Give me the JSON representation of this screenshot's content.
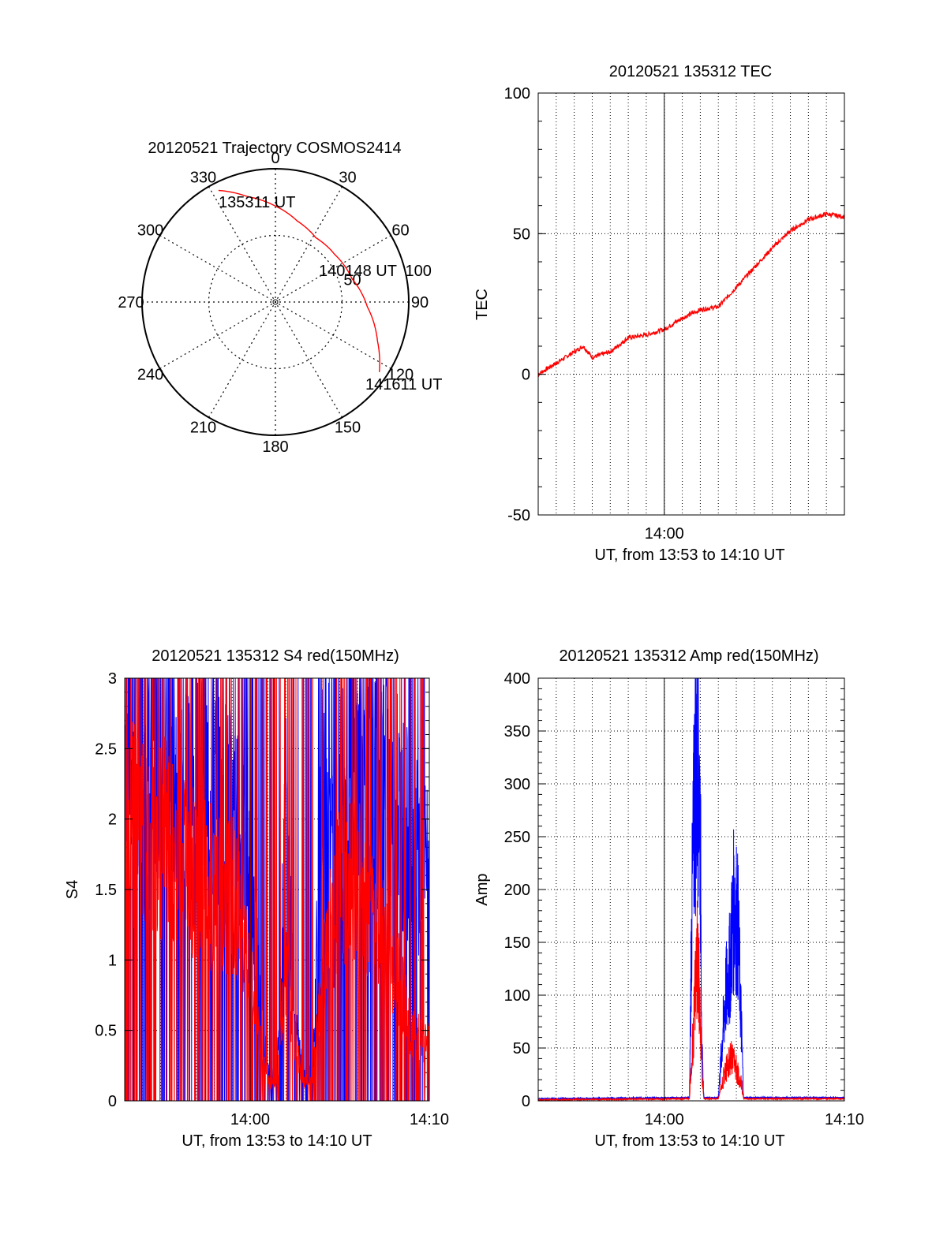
{
  "colors": {
    "red_channel": "#ff0000",
    "blue_channel": "#0000ff",
    "axis": "#000000",
    "grid": "#000000"
  },
  "chart_data": [
    {
      "type": "polar",
      "title": "20120521 Trajectory COSMOS2414",
      "angle_labels": [
        "0",
        "30",
        "60",
        "90",
        "120",
        "150",
        "180",
        "210",
        "240",
        "270",
        "300",
        "330"
      ],
      "radius_labels": [
        "50",
        "100"
      ],
      "trajectory": {
        "color": "#ff0000",
        "points": [
          {
            "az": 333,
            "r": 94
          },
          {
            "az": 345,
            "r": 82
          },
          {
            "az": 0,
            "r": 72
          },
          {
            "az": 15,
            "r": 63
          },
          {
            "az": 32,
            "r": 57
          },
          {
            "az": 51,
            "r": 57
          },
          {
            "az": 73,
            "r": 60
          },
          {
            "az": 93,
            "r": 69
          },
          {
            "az": 111,
            "r": 82
          },
          {
            "az": 124,
            "r": 94
          }
        ]
      },
      "annotations": [
        "135311 UT",
        "140148 UT",
        "141611 UT"
      ]
    },
    {
      "type": "line",
      "title": "20120521 135312 TEC",
      "ylabel": "TEC",
      "xlabel": "UT, from 13:53 to 14:10 UT",
      "xlim": [
        "13:53",
        "14:10"
      ],
      "ylim": [
        -50,
        100
      ],
      "y_ticks": [
        "100",
        "50",
        "0",
        "-50"
      ],
      "x_ticks": [
        "14:00"
      ],
      "grid": true,
      "series": [
        {
          "color": "#ff0000",
          "x": [
            "13:53",
            "13:54",
            "13:55",
            "13:55.5",
            "13:56",
            "13:56.5",
            "13:57",
            "13:58",
            "13:59",
            "14:00",
            "14:01",
            "14:02",
            "14:03",
            "14:04",
            "14:05",
            "14:06",
            "14:07",
            "14:08",
            "14:09",
            "14:10"
          ],
          "y": [
            0,
            4,
            8,
            10,
            6,
            7,
            8,
            13,
            14,
            16,
            20,
            23,
            24,
            31,
            38,
            45,
            51,
            55,
            57,
            56
          ]
        }
      ]
    },
    {
      "type": "line",
      "title": "20120521 135312 S4 red(150MHz)",
      "ylabel": "S4",
      "xlabel": "UT, from 13:53 to 14:10 UT",
      "xlim": [
        "13:53",
        "14:10"
      ],
      "ylim": [
        0,
        3
      ],
      "y_ticks": [
        "3",
        "2.5",
        "2",
        "1.5",
        "1",
        "0.5",
        "0"
      ],
      "x_ticks": [
        "14:00",
        "14:10"
      ],
      "grid": true,
      "series": [
        {
          "color": "#0000ff",
          "x": [
            "13:53",
            "13:55",
            "13:57",
            "13:58",
            "13:59",
            "13:59.5",
            "14:00",
            "14:01",
            "14:01.5",
            "14:02",
            "14:02.5",
            "14:03",
            "14:03.5",
            "14:04",
            "14:05",
            "14:06",
            "14:07",
            "14:08",
            "14:09",
            "14:10"
          ],
          "y": [
            2.8,
            2.5,
            2.3,
            2.2,
            2.0,
            1.8,
            1.5,
            0.2,
            0.15,
            2.0,
            0.5,
            0.2,
            0.2,
            2.2,
            2.3,
            2.3,
            2.2,
            2.2,
            1.8,
            1.6
          ]
        },
        {
          "color": "#ff0000",
          "x": [
            "13:53",
            "13:55",
            "13:57",
            "13:58",
            "13:59",
            "13:59.5",
            "14:00",
            "14:01",
            "14:01.5",
            "14:02",
            "14:02.5",
            "14:03",
            "14:03.5",
            "14:04",
            "14:05",
            "14:06",
            "14:07",
            "14:08",
            "14:09",
            "14:10"
          ],
          "y": [
            2.0,
            1.9,
            1.6,
            1.5,
            1.5,
            1.2,
            0.9,
            0.15,
            0.1,
            1.0,
            0.4,
            0.15,
            0.15,
            0.9,
            1.5,
            1.6,
            1.3,
            1.0,
            0.5,
            0.4
          ]
        }
      ]
    },
    {
      "type": "line",
      "title": "20120521 135312 Amp red(150MHz)",
      "ylabel": "Amp",
      "xlabel": "UT, from 13:53 to 14:10 UT",
      "xlim": [
        "13:53",
        "14:10"
      ],
      "ylim": [
        0,
        400
      ],
      "y_ticks": [
        "400",
        "350",
        "300",
        "250",
        "200",
        "150",
        "100",
        "50",
        "0"
      ],
      "x_ticks": [
        "14:00",
        "14:10"
      ],
      "grid": true,
      "series": [
        {
          "color": "#0000ff",
          "x": [
            "13:53",
            "14:01.4",
            "14:01.5",
            "14:01.7",
            "14:01.9",
            "14:02",
            "14:02.1",
            "14:02.2",
            "14:03",
            "14:03.4",
            "14:03.6",
            "14:03.9",
            "14:04.1",
            "14:04.3",
            "14:04.4",
            "14:10"
          ],
          "y": [
            2,
            3,
            150,
            300,
            335,
            250,
            40,
            3,
            3,
            100,
            120,
            190,
            160,
            60,
            3,
            3
          ]
        },
        {
          "color": "#ff0000",
          "x": [
            "13:53",
            "14:01.4",
            "14:01.6",
            "14:01.8",
            "14:02",
            "14:02.1",
            "14:02.2",
            "14:03",
            "14:03.4",
            "14:03.7",
            "14:04",
            "14:04.3",
            "14:04.4",
            "14:10"
          ],
          "y": [
            1,
            2,
            60,
            140,
            90,
            20,
            2,
            2,
            30,
            40,
            30,
            15,
            2,
            2
          ]
        }
      ]
    }
  ]
}
